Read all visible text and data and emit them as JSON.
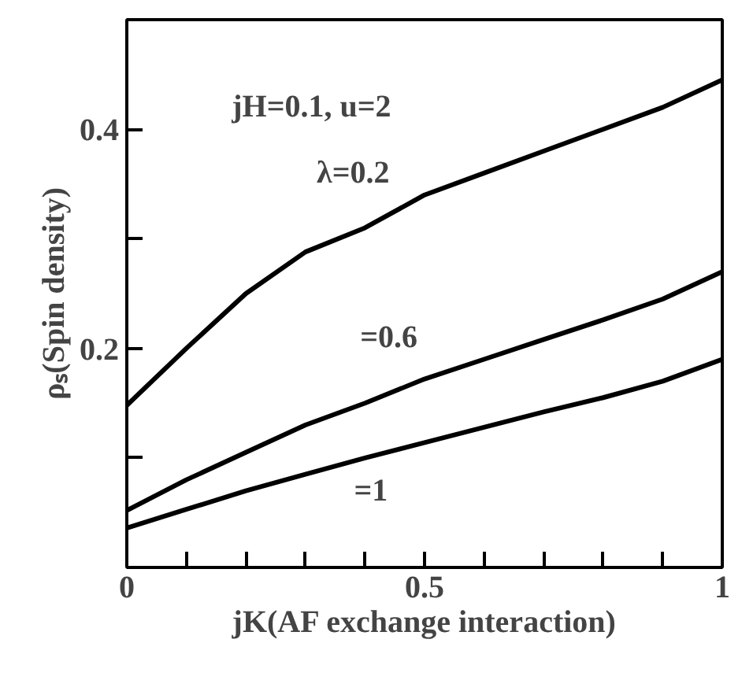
{
  "chart_data": {
    "type": "line",
    "xlabel": "jK(AF exchange interaction)",
    "ylabel": "ρₛ(Spin density)",
    "x": [
      0,
      0.1,
      0.2,
      0.3,
      0.4,
      0.5,
      0.6,
      0.7,
      0.8,
      0.9,
      1
    ],
    "series": [
      {
        "color": "#000000",
        "values": [
          0.148,
          0.2,
          0.25,
          0.288,
          0.31,
          0.34,
          0.36,
          0.38,
          0.4,
          0.42,
          0.445
        ]
      },
      {
        "color": "#000000",
        "values": [
          0.052,
          0.08,
          0.105,
          0.13,
          0.15,
          0.172,
          0.19,
          0.208,
          0.226,
          0.245,
          0.27
        ]
      },
      {
        "color": "#000000",
        "values": [
          0.036,
          0.053,
          0.07,
          0.085,
          0.1,
          0.114,
          0.128,
          0.142,
          0.155,
          0.17,
          0.19
        ]
      }
    ],
    "xlim": [
      0,
      1
    ],
    "ylim": [
      0,
      0.5
    ],
    "xticks": [
      0,
      {
        "value": 0.1,
        "label": null
      },
      {
        "value": 0.2,
        "label": null
      },
      {
        "value": 0.3,
        "label": null
      },
      {
        "value": 0.4,
        "label": null
      },
      0.5,
      {
        "value": 0.6,
        "label": null
      },
      {
        "value": 0.7,
        "label": null
      },
      {
        "value": 0.8,
        "label": null
      },
      {
        "value": 0.9,
        "label": null
      },
      1
    ],
    "yticks": [
      {
        "value": 0.1,
        "label": null
      },
      0.2,
      {
        "value": 0.3,
        "label": null
      },
      0.4
    ],
    "annotations": [
      "jH=0.1, u=2",
      "λ=0.2",
      "=0.6",
      "=1"
    ],
    "grid": false,
    "line_style": "solid"
  }
}
